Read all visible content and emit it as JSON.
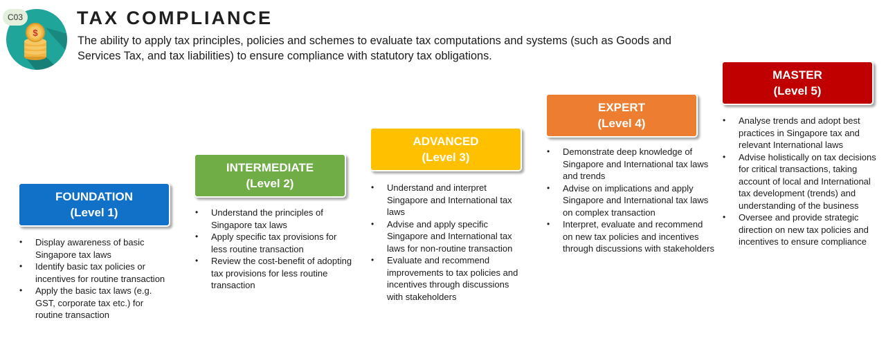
{
  "header": {
    "code": "C03",
    "title": "TAX COMPLIANCE",
    "description": "The ability to apply tax principles, policies and schemes to evaluate tax computations and systems (such as Goods and Services Tax, and tax liabilities) to ensure compliance with statutory tax obligations."
  },
  "colors": {
    "foundation": "#1170C7",
    "intermediate": "#70AD47",
    "advanced": "#FFC000",
    "expert": "#ED7D31",
    "master": "#C00000",
    "logo_circle": "#1FA59A",
    "coin": "#F2B544"
  },
  "levels": [
    {
      "name": "FOUNDATION",
      "level": "(Level 1)",
      "items": [
        "Display awareness of basic Singapore tax laws",
        "Identify basic tax policies or incentives for routine transaction",
        "Apply the basic tax laws (e.g. GST, corporate tax etc.) for routine transaction"
      ]
    },
    {
      "name": "INTERMEDIATE",
      "level": "(Level 2)",
      "items": [
        "Understand the principles of Singapore tax laws",
        "Apply specific tax provisions for less routine transaction",
        "Review the cost-benefit of adopting tax provisions for less routine transaction"
      ]
    },
    {
      "name": "ADVANCED",
      "level": "(Level 3)",
      "items": [
        "Understand and interpret Singapore and International tax laws",
        "Advise and apply specific Singapore and International tax laws for non-routine transaction",
        "Evaluate and recommend improvements to tax policies and incentives through discussions with stakeholders"
      ]
    },
    {
      "name": "EXPERT",
      "level": "(Level 4)",
      "items": [
        "Demonstrate deep knowledge of Singapore and International tax laws and trends",
        "Advise on implications and apply Singapore and International tax laws on complex transaction",
        "Interpret, evaluate and recommend on new tax policies and incentives through discussions with stakeholders"
      ]
    },
    {
      "name": "MASTER",
      "level": "(Level 5)",
      "items": [
        "Analyse trends and adopt best practices in Singapore tax and relevant International laws",
        "Advise holistically on tax decisions for critical transactions, taking account of local and International tax development (trends) and understanding of the business",
        "Oversee and provide strategic direction on new tax policies and incentives to ensure compliance"
      ]
    }
  ]
}
